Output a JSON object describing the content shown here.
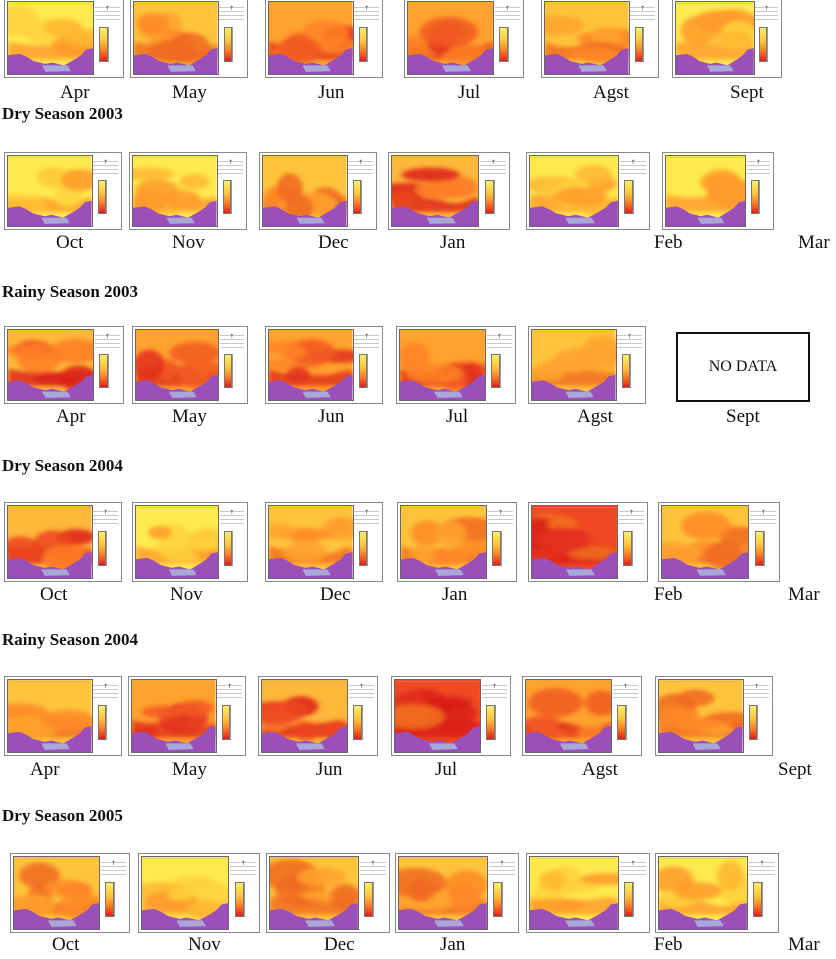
{
  "rows": [
    {
      "title": "",
      "months": [
        "Apr",
        "May",
        "Jun",
        "Jul",
        "Agst",
        "Sept"
      ],
      "maps": [
        {
          "shade": "yellow",
          "nodata": false
        },
        {
          "shade": "orange",
          "nodata": false
        },
        {
          "shade": "orange-red",
          "nodata": false
        },
        {
          "shade": "orange-red",
          "nodata": false
        },
        {
          "shade": "orange",
          "nodata": false
        },
        {
          "shade": "yellow",
          "nodata": false
        }
      ]
    },
    {
      "title": "Dry Season 2003",
      "months": [
        "Oct",
        "Nov",
        "Dec",
        "Jan",
        "Feb",
        "Mar"
      ],
      "maps": [
        {
          "shade": "yellow",
          "nodata": false
        },
        {
          "shade": "yellow",
          "nodata": false
        },
        {
          "shade": "orange",
          "nodata": false
        },
        {
          "shade": "red",
          "nodata": false
        },
        {
          "shade": "yellow",
          "nodata": false
        },
        {
          "shade": "yellow",
          "nodata": false
        }
      ]
    },
    {
      "title": "Rainy Season 2003",
      "months": [
        "Apr",
        "May",
        "Jun",
        "Jul",
        "Agst",
        "Sept"
      ],
      "maps": [
        {
          "shade": "red",
          "nodata": false
        },
        {
          "shade": "orange-red",
          "nodata": false
        },
        {
          "shade": "orange-red",
          "nodata": false
        },
        {
          "shade": "orange-red",
          "nodata": false
        },
        {
          "shade": "orange",
          "nodata": false
        },
        {
          "shade": "",
          "nodata": true
        }
      ],
      "nodata_label": "NO DATA"
    },
    {
      "title": "Dry Season 2004",
      "months": [
        "Oct",
        "Nov",
        "Dec",
        "Jan",
        "Feb",
        "Mar"
      ],
      "maps": [
        {
          "shade": "red",
          "nodata": false
        },
        {
          "shade": "yellow",
          "nodata": false
        },
        {
          "shade": "orange",
          "nodata": false
        },
        {
          "shade": "orange",
          "nodata": false
        },
        {
          "shade": "deep-red",
          "nodata": false
        },
        {
          "shade": "orange",
          "nodata": false
        }
      ]
    },
    {
      "title": "Rainy Season 2004",
      "months": [
        "Apr",
        "May",
        "Jun",
        "Jul",
        "Agst",
        "Sept"
      ],
      "maps": [
        {
          "shade": "orange",
          "nodata": false
        },
        {
          "shade": "orange-red",
          "nodata": false
        },
        {
          "shade": "red",
          "nodata": false
        },
        {
          "shade": "deep-red",
          "nodata": false
        },
        {
          "shade": "orange-red",
          "nodata": false
        },
        {
          "shade": "orange",
          "nodata": false
        }
      ]
    },
    {
      "title": "Dry Season 2005",
      "months": [
        "Oct",
        "Nov",
        "Dec",
        "Jan",
        "Feb",
        "Mar"
      ],
      "maps": [
        {
          "shade": "orange",
          "nodata": false
        },
        {
          "shade": "yellow",
          "nodata": false
        },
        {
          "shade": "orange",
          "nodata": false
        },
        {
          "shade": "orange",
          "nodata": false
        },
        {
          "shade": "yellow",
          "nodata": false
        },
        {
          "shade": "yellow",
          "nodata": false
        }
      ]
    }
  ],
  "colors": {
    "yellow": "#ffe94d",
    "orange": "#ffab30",
    "red": "#e8341e",
    "sea": "#9b4fb8",
    "lake": "#a8a8d8"
  }
}
